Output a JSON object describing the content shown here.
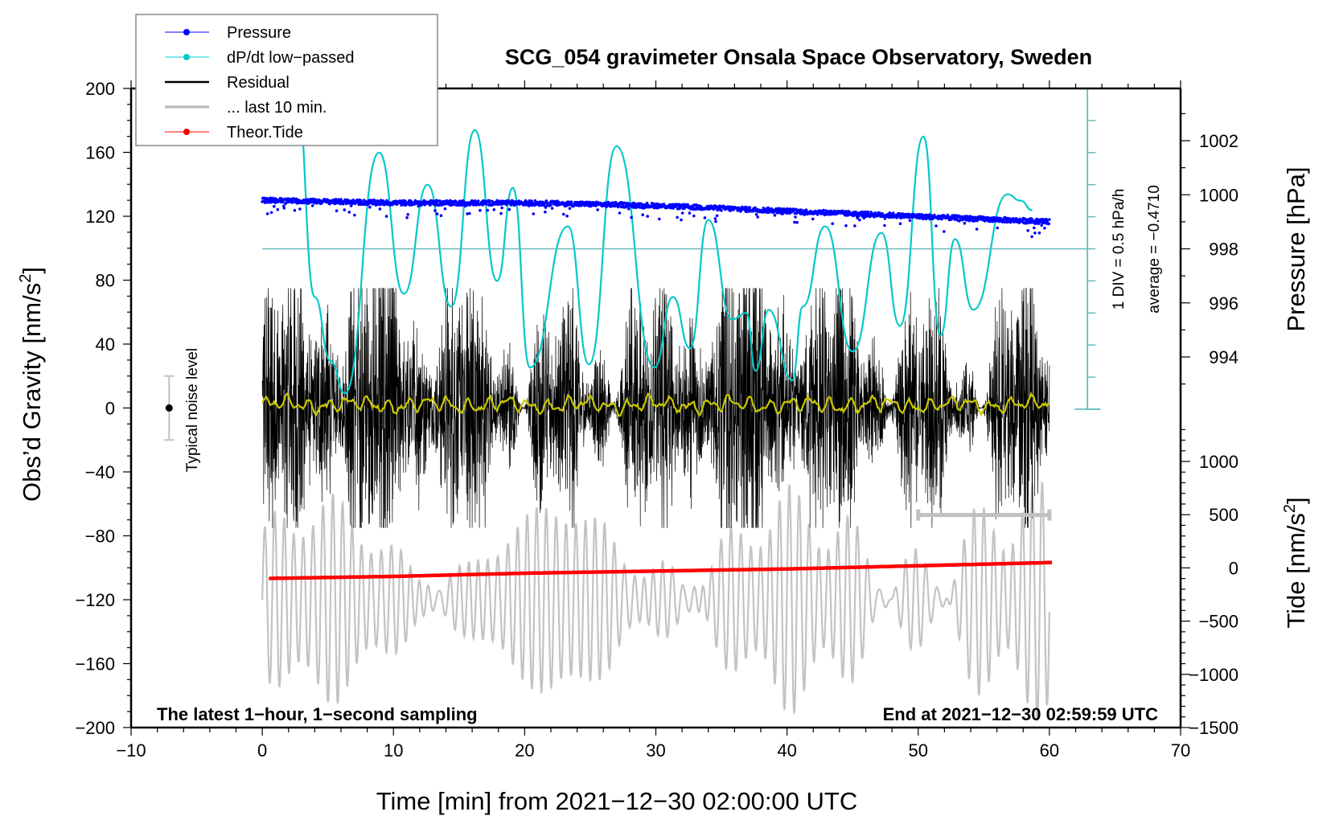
{
  "chart_data": {
    "type": "line",
    "title": "SCG_054 gravimeter Onsala Space Observatory, Sweden",
    "xlabel": "Time [min] from 2021−12−30 02:00:00 UTC",
    "ylabel_left": "Obs’d Gravity [nm/s²]",
    "ylabel_left_main": "Obs’d Gravity [nm/s",
    "ylabel_left_sup": "2",
    "ylabel_left_end": "]",
    "ylabel_right_top": "Pressure [hPa]",
    "ylabel_right_bottom_main": "Tide [nm/s",
    "ylabel_right_bottom_sup": "2",
    "ylabel_right_bottom_end": "]",
    "xlim": [
      -10,
      70
    ],
    "ylim_left": [
      -200,
      200
    ],
    "pressure_axis_range": [
      992.1,
      1003.9
    ],
    "tide_axis_range": [
      -1500,
      1500
    ],
    "x_ticks": [
      "−10",
      "0",
      "10",
      "20",
      "30",
      "40",
      "50",
      "60",
      "70"
    ],
    "x_tick_values": [
      -10,
      0,
      10,
      20,
      30,
      40,
      50,
      60,
      70
    ],
    "y_left_ticks": [
      "200",
      "160",
      "120",
      "80",
      "40",
      "0",
      "−40",
      "−80",
      "−120",
      "−160",
      "−200"
    ],
    "y_left_tick_values": [
      200,
      160,
      120,
      80,
      40,
      0,
      -40,
      -80,
      -120,
      -160,
      -200
    ],
    "pressure_ticks": [
      "1002",
      "1000",
      "998",
      "996",
      "994"
    ],
    "pressure_tick_values": [
      1002,
      1000,
      998,
      996,
      994
    ],
    "tide_ticks": [
      "1000",
      "500",
      "0",
      "−500",
      "−1000",
      "−1500"
    ],
    "tide_tick_values": [
      1000,
      500,
      0,
      -500,
      -1000,
      -1500
    ],
    "legend": {
      "position": "top-left",
      "entries": [
        {
          "label": "Pressure",
          "color": "#0000ff",
          "marker": "dot"
        },
        {
          "label": "dP/dt low−passed",
          "color": "#00c8c8",
          "marker": "dot"
        },
        {
          "label": "Residual",
          "color": "#000000",
          "marker": "line"
        },
        {
          "label": "... last 10 min.",
          "color": "#bebebe",
          "marker": "line"
        },
        {
          "label": "Theor.Tide",
          "color": "#ff0000",
          "marker": "dot"
        }
      ]
    },
    "series": [
      {
        "name": "Pressure",
        "axis": "pressure",
        "color": "#0000ff",
        "style": "dots",
        "x": [
          0,
          10,
          20,
          30,
          40,
          50,
          60
        ],
        "values": [
          999.8,
          999.7,
          999.7,
          999.6,
          999.4,
          999.2,
          999.0
        ]
      },
      {
        "name": "dP/dt low-passed",
        "axis": "dpdt_div",
        "color": "#00c8c8",
        "style": "line",
        "baseline_pressure": 998,
        "x": [
          2.6,
          4.0,
          5.2,
          6.3,
          8.9,
          10.8,
          12.6,
          14.4,
          16.2,
          17.9,
          19.1,
          20.4,
          23.3,
          24.9,
          27.0,
          29.9,
          31.3,
          32.6,
          34.0,
          35.8,
          36.9,
          37.6,
          38.6,
          40.4,
          41.2,
          42.9,
          45.0,
          47.2,
          48.6,
          50.4,
          51.7,
          52.8,
          54.2,
          56.8,
          57.8,
          58.7
        ],
        "values": [
          5.0,
          -1.5,
          -3.5,
          -4.5,
          3.0,
          -1.4,
          2.0,
          -1.8,
          3.7,
          -1.0,
          1.9,
          -3.7,
          0.7,
          -3.6,
          3.2,
          -3.7,
          -1.5,
          -3.1,
          0.9,
          -2.2,
          -2.0,
          -3.8,
          -1.9,
          -4.1,
          -1.8,
          0.7,
          -3.2,
          0.5,
          -2.4,
          3.5,
          -2.7,
          0.3,
          -1.9,
          1.7,
          1.5,
          1.2
        ]
      },
      {
        "name": "Residual",
        "axis": "left",
        "color": "#000000",
        "style": "line",
        "x_range": [
          0,
          60
        ],
        "amplitude_range": [
          -75,
          75
        ],
        "x": [
          0,
          30,
          60
        ],
        "values": [
          0,
          0,
          0
        ]
      },
      {
        "name": "Residual smoothed",
        "axis": "left",
        "color": "#c8c800",
        "style": "line",
        "x": [
          0,
          10,
          20,
          30,
          40,
          50,
          60
        ],
        "values": [
          2,
          1,
          3,
          0,
          2,
          2,
          -3
        ]
      },
      {
        "name": "... last 10 min.",
        "axis": "left",
        "color": "#bebebe",
        "style": "line",
        "x_range": [
          0,
          60
        ],
        "amplitude_range": [
          -200,
          -60
        ]
      },
      {
        "name": "Theor.Tide",
        "axis": "tide",
        "color": "#ff0000",
        "style": "dots",
        "x": [
          0,
          10,
          20,
          30,
          40,
          50,
          60
        ],
        "values": [
          -100,
          -80,
          -50,
          -30,
          -10,
          20,
          50
        ]
      }
    ],
    "annotations": {
      "bottom_left": "The latest 1−hour, 1−second sampling",
      "bottom_right": "End at 2021−12−30 02:59:59 UTC",
      "noise_label": "Typical noise level",
      "noise_level_value": 0,
      "noise_level_range": [
        -20,
        20
      ],
      "div_label": "1 DIV = 0.5 hPa/h",
      "average_label": "average = −0.4710",
      "last10_bar_range": [
        50,
        60
      ],
      "last10_bar_value": -67
    },
    "grid": false
  }
}
